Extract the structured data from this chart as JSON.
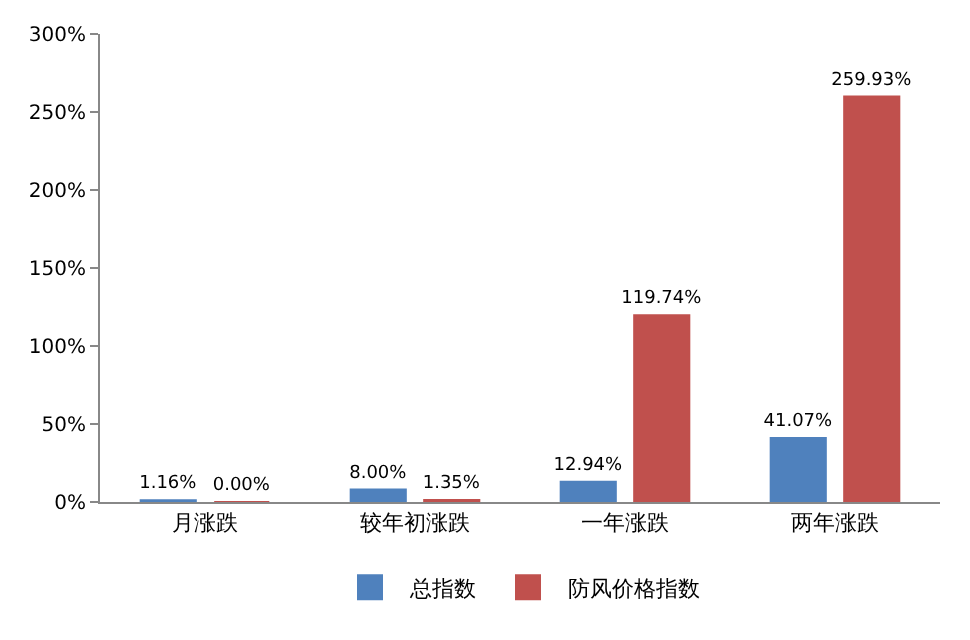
{
  "chart_data": {
    "type": "bar",
    "categories": [
      "月涨跌",
      "较年初涨跌",
      "一年涨跌",
      "两年涨跌"
    ],
    "series": [
      {
        "name": "总指数",
        "color": "#4f81bd",
        "values": [
          1.16,
          8.0,
          12.94,
          41.07
        ],
        "value_labels": [
          "1.16%",
          "8.00%",
          "12.94%",
          "41.07%"
        ]
      },
      {
        "name": "防风价格指数",
        "color": "#c0504d",
        "values": [
          0.0,
          1.35,
          119.74,
          259.93
        ],
        "value_labels": [
          "0.00%",
          "1.35%",
          "119.74%",
          "259.93%"
        ]
      }
    ],
    "ylim": [
      0,
      300
    ],
    "yticks": [
      {
        "value": 0,
        "label": "0%"
      },
      {
        "value": 50,
        "label": "50%"
      },
      {
        "value": 100,
        "label": "100%"
      },
      {
        "value": 150,
        "label": "150%"
      },
      {
        "value": 200,
        "label": "200%"
      },
      {
        "value": 250,
        "label": "250%"
      },
      {
        "value": 300,
        "label": "300%"
      }
    ],
    "legend": "bottom"
  }
}
